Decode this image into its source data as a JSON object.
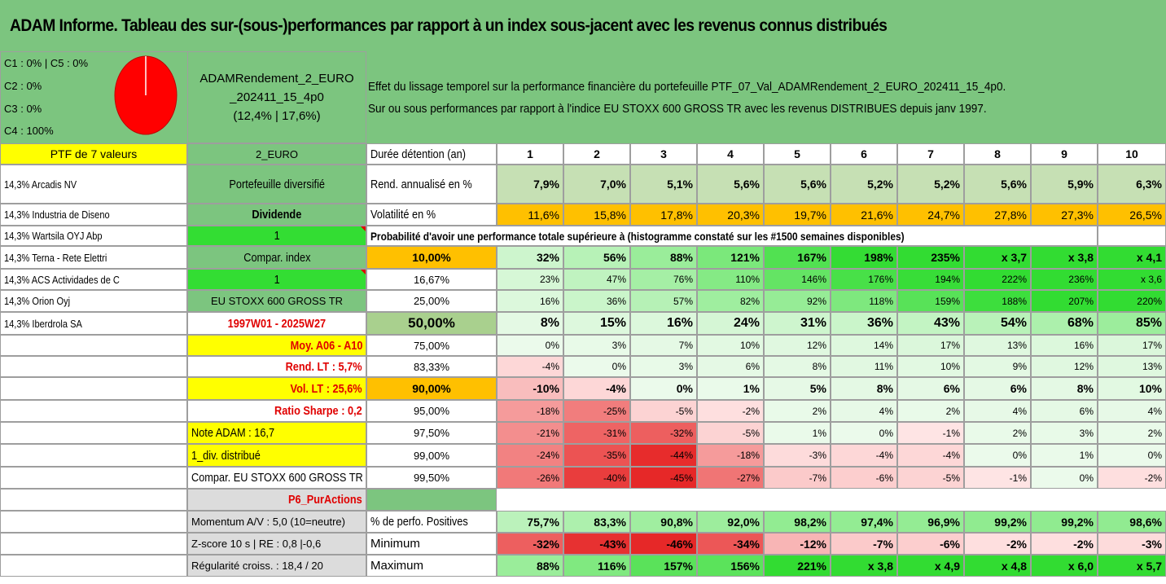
{
  "title": "ADAM Informe. Tableau des sur-(sous-)performances par rapport à un index sous-jacent avec les revenus connus distribués",
  "legend": {
    "c1_c5": "C1 : 0% | C5 : 0%",
    "c2": "C2 : 0%",
    "c3": "C3 : 0%",
    "c4": "C4 : 100%",
    "pie_color": "#ff0000",
    "pie_values": {
      "C1": 0,
      "C2": 0,
      "C3": 0,
      "C4": 100,
      "C5": 0
    }
  },
  "fund": {
    "line1": "ADAMRendement_2_EURO",
    "line2": "_202411_15_4p0",
    "line3": "(12,4% | 17,6%)"
  },
  "description": {
    "line1": "Effet du lissage temporel sur la performance financière du portefeuille PTF_07_Val_ADAMRendement_2_EURO_202411_15_4p0.",
    "line2": "Sur ou sous performances par rapport à l'indice EU STOXX 600 GROSS TR avec les revenus DISTRIBUES depuis janv 1997."
  },
  "left_column": {
    "header": "PTF de 7 valeurs",
    "holdings": [
      "14,3% Arcadis NV",
      "14,3% Industria de Diseno",
      "14,3% Wartsila OYJ Abp",
      "14,3% Terna - Rete Elettri",
      "14,3% ACS Actividades de C",
      "14,3% Orion Oyj",
      "14,3% Iberdrola SA"
    ]
  },
  "mid_column": {
    "currency": "2_EURO",
    "diversified": "Portefeuille diversifié",
    "dividend": "Dividende",
    "one_a": "1",
    "compar_index": "Compar. index",
    "one_b": "1",
    "index_name": "EU STOXX 600 GROSS TR",
    "period": "1997W01 - 2025W27",
    "moy": "Moy. A06 - A10",
    "rend_lt": "Rend. LT : 5,7%",
    "vol_lt": "Vol. LT : 25,6%",
    "sharpe": "Ratio Sharpe : 0,2",
    "note": "Note ADAM : 16,7",
    "div": "1_div. distribué",
    "compar_full": "Compar. EU STOXX 600 GROSS TR",
    "p6": "P6_PurActions",
    "momentum": "Momentum A/V : 5,0 (10=neutre)",
    "zscore": "Z-score 10 s | RE : 0,8 |-0,6",
    "regularite": "Régularité croiss. : 18,4 / 20"
  },
  "table": {
    "duration_label": "Durée détention (an)",
    "years": [
      "1",
      "2",
      "3",
      "4",
      "5",
      "6",
      "7",
      "8",
      "9",
      "10"
    ],
    "rend_label": "Rend. annualisé en %",
    "rend": [
      "7,9%",
      "7,0%",
      "5,1%",
      "5,6%",
      "5,6%",
      "5,2%",
      "5,2%",
      "5,6%",
      "5,9%",
      "6,3%"
    ],
    "vol_label": "Volatilité en %",
    "vol": [
      "11,6%",
      "15,8%",
      "17,8%",
      "20,3%",
      "19,7%",
      "21,6%",
      "24,7%",
      "27,8%",
      "27,3%",
      "26,5%"
    ],
    "prob_label": "Probabilité d'avoir une performance totale supérieure à (histogramme constaté sur les #1500 semaines disponibles)",
    "prob_rows": [
      {
        "p": "10,00%",
        "v": [
          "32%",
          "56%",
          "88%",
          "121%",
          "167%",
          "198%",
          "235%",
          "x 3,7",
          "x 3,8",
          "x 4,1"
        ]
      },
      {
        "p": "16,67%",
        "v": [
          "23%",
          "47%",
          "76%",
          "110%",
          "146%",
          "176%",
          "194%",
          "222%",
          "236%",
          "x 3,6"
        ]
      },
      {
        "p": "25,00%",
        "v": [
          "16%",
          "36%",
          "57%",
          "82%",
          "92%",
          "118%",
          "159%",
          "188%",
          "207%",
          "220%"
        ]
      },
      {
        "p": "50,00%",
        "v": [
          "8%",
          "15%",
          "16%",
          "24%",
          "31%",
          "36%",
          "43%",
          "54%",
          "68%",
          "85%"
        ]
      },
      {
        "p": "75,00%",
        "v": [
          "0%",
          "3%",
          "7%",
          "10%",
          "12%",
          "14%",
          "17%",
          "13%",
          "16%",
          "17%"
        ]
      },
      {
        "p": "83,33%",
        "v": [
          "-4%",
          "0%",
          "3%",
          "6%",
          "8%",
          "11%",
          "10%",
          "9%",
          "12%",
          "13%"
        ]
      },
      {
        "p": "90,00%",
        "v": [
          "-10%",
          "-4%",
          "0%",
          "1%",
          "5%",
          "8%",
          "6%",
          "6%",
          "8%",
          "10%"
        ]
      },
      {
        "p": "95,00%",
        "v": [
          "-18%",
          "-25%",
          "-5%",
          "-2%",
          "2%",
          "4%",
          "2%",
          "4%",
          "6%",
          "4%"
        ]
      },
      {
        "p": "97,50%",
        "v": [
          "-21%",
          "-31%",
          "-32%",
          "-5%",
          "1%",
          "0%",
          "-1%",
          "2%",
          "3%",
          "2%"
        ]
      },
      {
        "p": "99,00%",
        "v": [
          "-24%",
          "-35%",
          "-44%",
          "-18%",
          "-3%",
          "-4%",
          "-4%",
          "0%",
          "1%",
          "0%"
        ]
      },
      {
        "p": "99,50%",
        "v": [
          "-26%",
          "-40%",
          "-45%",
          "-27%",
          "-7%",
          "-6%",
          "-5%",
          "-1%",
          "0%",
          "-2%"
        ]
      }
    ],
    "pos_label": "% de perfo. Positives",
    "pos": [
      "75,7%",
      "83,3%",
      "90,8%",
      "92,0%",
      "98,2%",
      "97,4%",
      "96,9%",
      "99,2%",
      "99,2%",
      "98,6%"
    ],
    "min_label": "Minimum",
    "min": [
      "-32%",
      "-43%",
      "-46%",
      "-34%",
      "-12%",
      "-7%",
      "-6%",
      "-2%",
      "-2%",
      "-3%"
    ],
    "max_label": "Maximum",
    "max": [
      "88%",
      "116%",
      "157%",
      "156%",
      "221%",
      "x 3,8",
      "x 4,9",
      "x 4,8",
      "x 6,0",
      "x 5,7"
    ]
  }
}
